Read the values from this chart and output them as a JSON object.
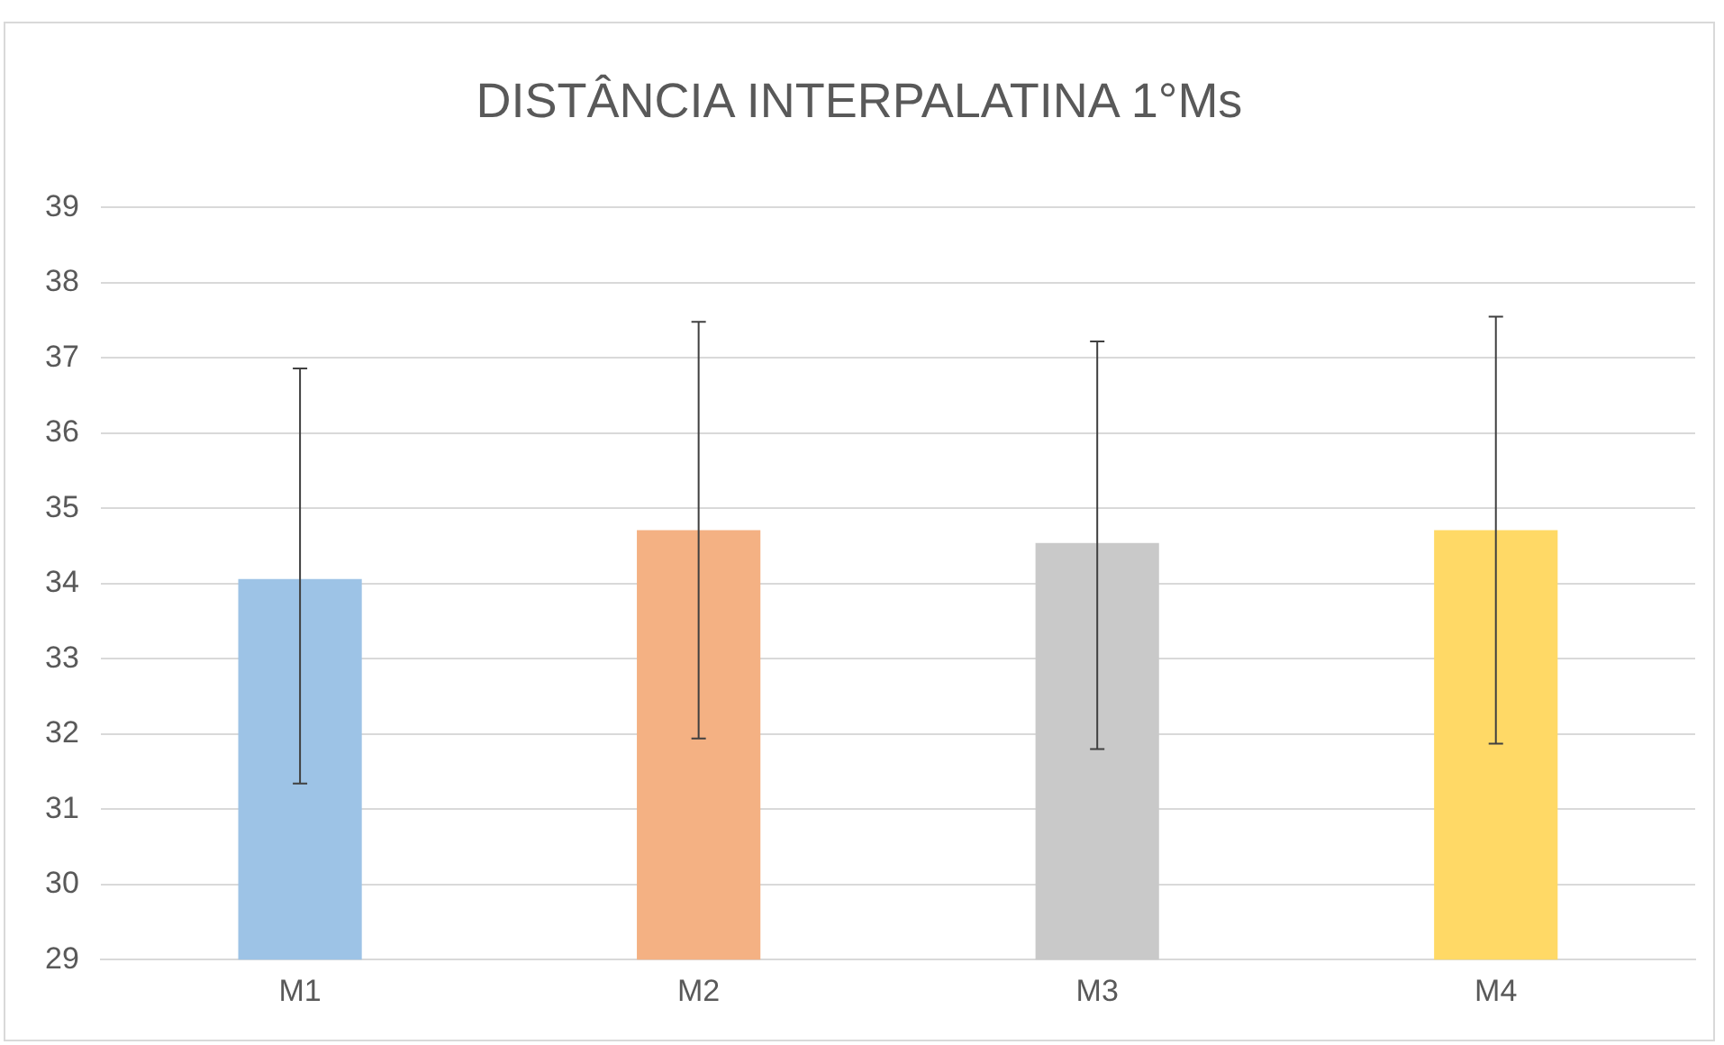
{
  "chart_data": {
    "type": "bar",
    "title": "DISTÂNCIA INTERPALATINA 1°Ms",
    "categories": [
      "M1",
      "M2",
      "M3",
      "M4"
    ],
    "values": [
      34.06,
      34.71,
      34.54,
      34.71
    ],
    "colors": [
      "#9dc3e6",
      "#f4b183",
      "#c9c9c9",
      "#ffd966"
    ],
    "errors": [
      [
        31.34,
        36.86
      ],
      [
        31.94,
        37.48
      ],
      [
        31.8,
        37.22
      ],
      [
        31.87,
        37.55
      ]
    ],
    "ylim": [
      29,
      39
    ],
    "yticks": [
      29,
      30,
      31,
      32,
      33,
      34,
      35,
      36,
      37,
      38,
      39
    ],
    "grid": "y",
    "legend": false
  }
}
